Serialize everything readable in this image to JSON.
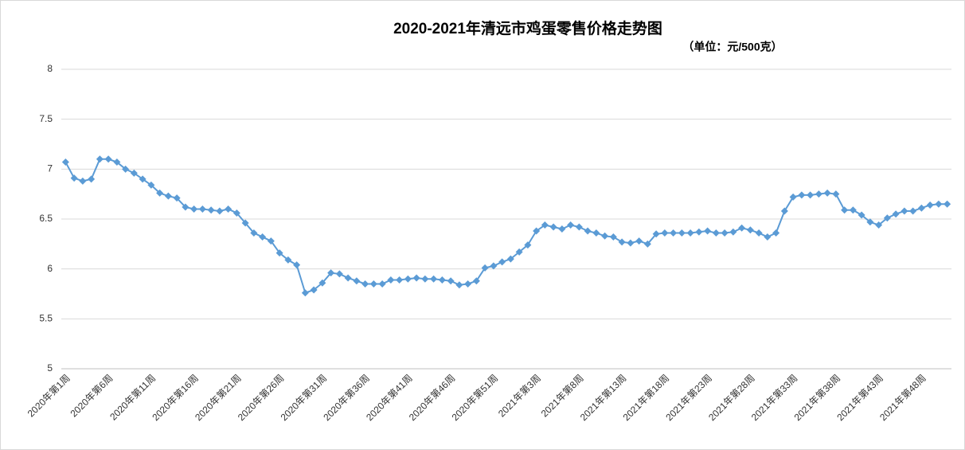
{
  "chart_data": {
    "type": "line",
    "title": "2020-2021年清远市鸡蛋零售价格走势图",
    "subtitle": "（单位：元/500克）",
    "categories": [
      "2020年第1周",
      null,
      null,
      null,
      null,
      "2020年第6周",
      null,
      null,
      null,
      null,
      "2020年第11周",
      null,
      null,
      null,
      null,
      "2020年第16周",
      null,
      null,
      null,
      null,
      "2020年第21周",
      null,
      null,
      null,
      null,
      "2020年第26周",
      null,
      null,
      null,
      null,
      "2020年第31周",
      null,
      null,
      null,
      null,
      "2020年第36周",
      null,
      null,
      null,
      null,
      "2020年第41周",
      null,
      null,
      null,
      null,
      "2020年第46周",
      null,
      null,
      null,
      null,
      "2020年第51周",
      null,
      null,
      null,
      null,
      "2021年第3周",
      null,
      null,
      null,
      null,
      "2021年第8周",
      null,
      null,
      null,
      null,
      "2021年第13周",
      null,
      null,
      null,
      null,
      "2021年第18周",
      null,
      null,
      null,
      null,
      "2021年第23周",
      null,
      null,
      null,
      null,
      "2021年第28周",
      null,
      null,
      null,
      null,
      "2021年第33周",
      null,
      null,
      null,
      null,
      "2021年第38周",
      null,
      null,
      null,
      null,
      "2021年第43周",
      null,
      null,
      null,
      null,
      "2021年第48周",
      null,
      null,
      null
    ],
    "values": [
      7.07,
      6.91,
      6.88,
      6.9,
      7.1,
      7.1,
      7.07,
      7.0,
      6.96,
      6.9,
      6.84,
      6.76,
      6.73,
      6.71,
      6.62,
      6.6,
      6.6,
      6.59,
      6.58,
      6.6,
      6.56,
      6.46,
      6.36,
      6.32,
      6.28,
      6.16,
      6.09,
      6.04,
      5.76,
      5.79,
      5.86,
      5.96,
      5.95,
      5.91,
      5.88,
      5.85,
      5.85,
      5.85,
      5.89,
      5.89,
      5.9,
      5.91,
      5.9,
      5.9,
      5.89,
      5.88,
      5.84,
      5.85,
      5.88,
      6.01,
      6.03,
      6.07,
      6.1,
      6.17,
      6.24,
      6.38,
      6.44,
      6.42,
      6.4,
      6.44,
      6.42,
      6.38,
      6.36,
      6.33,
      6.32,
      6.27,
      6.26,
      6.28,
      6.25,
      6.35,
      6.36,
      6.36,
      6.36,
      6.36,
      6.37,
      6.38,
      6.36,
      6.36,
      6.37,
      6.41,
      6.39,
      6.36,
      6.32,
      6.36,
      6.58,
      6.72,
      6.74,
      6.74,
      6.75,
      6.76,
      6.75,
      6.59,
      6.59,
      6.54,
      6.47,
      6.44,
      6.51,
      6.55,
      6.58,
      6.58,
      6.61,
      6.64,
      6.65,
      6.65
    ],
    "color": "#5b9bd5",
    "ylim": [
      5,
      8
    ],
    "yticks": [
      5,
      5.5,
      6,
      6.5,
      7,
      7.5,
      8
    ],
    "grid": true
  }
}
